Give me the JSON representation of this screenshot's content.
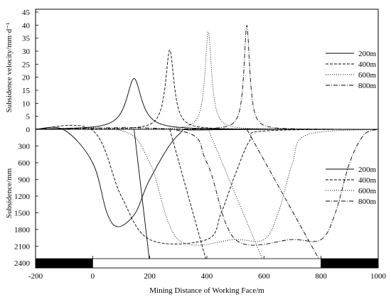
{
  "chart_data": [
    {
      "type": "line",
      "panel": "top",
      "ylabel": "Subsidence velocity/mm·d⁻¹",
      "ylim": [
        0,
        45
      ],
      "yticks": [
        0,
        5,
        10,
        15,
        20,
        25,
        30,
        35,
        40,
        45
      ],
      "legend_position": "right",
      "series": [
        {
          "name": "200m",
          "peak_x": 145,
          "peak_y": 19.5,
          "width": 32,
          "dash": ""
        },
        {
          "name": "400m",
          "peak_x": 270,
          "peak_y": 30.5,
          "width": 18,
          "dash": "4,2"
        },
        {
          "name": "600m",
          "peak_x": 405,
          "peak_y": 37.5,
          "width": 14,
          "dash": "1,2"
        },
        {
          "name": "800m",
          "peak_x": 540,
          "peak_y": 40,
          "width": 12,
          "dash": "6,2,1,2"
        }
      ]
    },
    {
      "type": "line",
      "panel": "bottom",
      "ylabel": "Subsidence/mm",
      "ylim": [
        0,
        2400
      ],
      "yticks": [
        0,
        300,
        600,
        900,
        1200,
        1500,
        1800,
        2100,
        2400
      ],
      "inverted": true,
      "legend_position": "right",
      "series": [
        {
          "name": "200m",
          "x": [
            -200,
            -100,
            0,
            50,
            90,
            150,
            200,
            300,
            400,
            1000
          ],
          "y": [
            0,
            10,
            600,
            1500,
            1750,
            1500,
            900,
            100,
            10,
            0
          ],
          "dash": ""
        },
        {
          "name": "400m",
          "x": [
            -200,
            0,
            100,
            200,
            400,
            450,
            500,
            550,
            600,
            1000
          ],
          "y": [
            0,
            20,
            1200,
            1980,
            1980,
            1500,
            800,
            200,
            30,
            0
          ],
          "dash": "4,2"
        },
        {
          "name": "600m",
          "x": [
            -200,
            100,
            200,
            300,
            500,
            600,
            650,
            700,
            750,
            1000
          ],
          "y": [
            0,
            20,
            600,
            1980,
            1980,
            1980,
            1500,
            600,
            100,
            0
          ],
          "dash": "1,2"
        },
        {
          "name": "800m",
          "x": [
            -200,
            300,
            400,
            500,
            700,
            800,
            850,
            900,
            950,
            1000
          ],
          "y": [
            0,
            20,
            600,
            1980,
            1980,
            1980,
            1500,
            600,
            100,
            0
          ],
          "dash": "6,2,1,2"
        }
      ],
      "guide_lines": [
        {
          "x": [
            145,
            200
          ],
          "y": [
            0,
            2400
          ]
        },
        {
          "x": [
            270,
            400
          ],
          "y": [
            0,
            2400
          ]
        },
        {
          "x": [
            405,
            600
          ],
          "y": [
            0,
            2400
          ]
        },
        {
          "x": [
            540,
            800
          ],
          "y": [
            0,
            2400
          ]
        }
      ]
    }
  ],
  "xaxis": {
    "label": "Mining Distance of Working Face/m",
    "xlim": [
      -200,
      1000
    ],
    "ticks": [
      -200,
      0,
      200,
      400,
      600,
      800,
      1000
    ]
  },
  "strata_bar": [
    {
      "from": -200,
      "to": 0,
      "fill": "#000000"
    },
    {
      "from": 0,
      "to": 800,
      "fill": "#ffffff"
    },
    {
      "from": 800,
      "to": 1000,
      "fill": "#000000"
    }
  ]
}
